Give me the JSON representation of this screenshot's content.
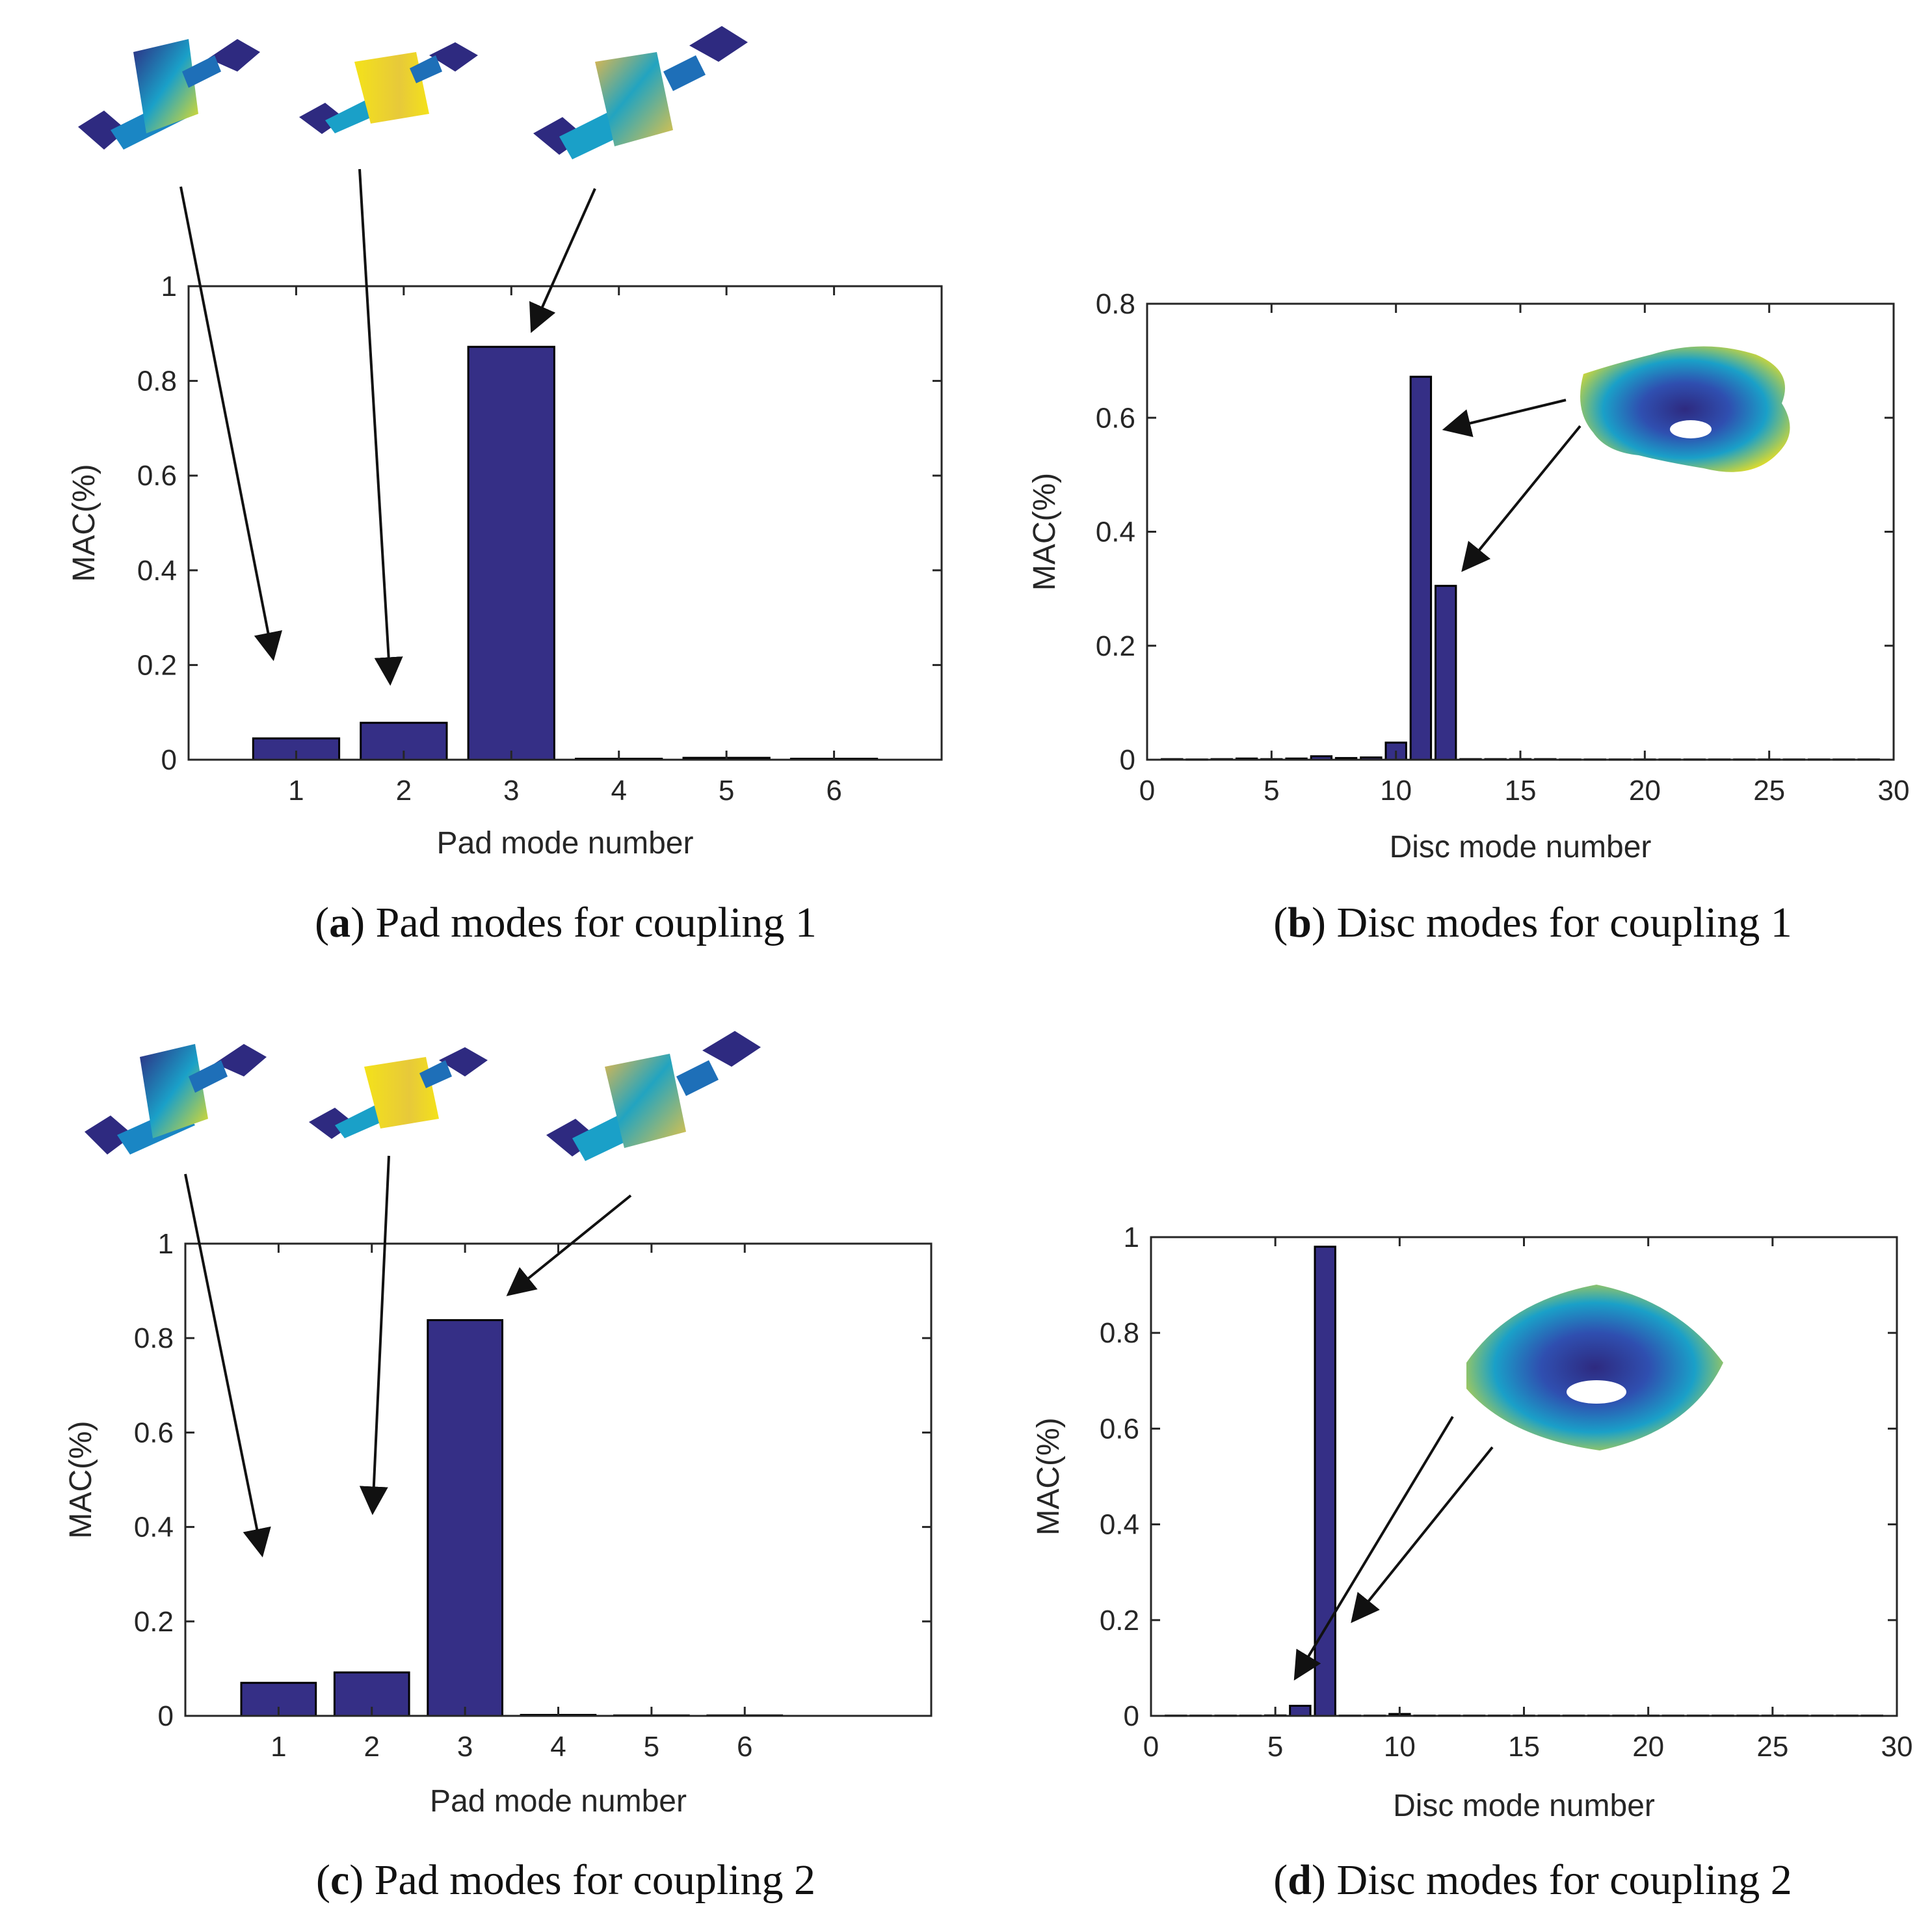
{
  "colors": {
    "bar": "#352f86",
    "axis": "#262626",
    "mode_low": "#2e2a80",
    "mode_mid": "#1aa0c8",
    "mode_high": "#f4e21a"
  },
  "chart_data": [
    {
      "type": "bar",
      "id": "a",
      "caption_letter": "a",
      "caption_text": "Pad modes for coupling 1",
      "xlabel": "Pad mode number",
      "ylabel": "MAC(%)",
      "categories": [
        "1",
        "2",
        "3",
        "4",
        "5",
        "6"
      ],
      "x": [
        1,
        2,
        3,
        4,
        5,
        6
      ],
      "values": [
        0.045,
        0.078,
        0.872,
        0.002,
        0.004,
        0.002
      ],
      "xlim": [
        0,
        7
      ],
      "ylim": [
        0,
        1
      ],
      "yticks": [
        "0",
        "0.2",
        "0.4",
        "0.6",
        "0.8",
        "1"
      ],
      "ytick_values": [
        0,
        0.2,
        0.4,
        0.6,
        0.8,
        1
      ],
      "grid": false,
      "annotations": [
        "Pad mode shape 1 (arrow to bar 1)",
        "Pad mode shape 2 (arrow to bar 2)",
        "Pad mode shape 3 (arrow to bar 3)"
      ]
    },
    {
      "type": "bar",
      "id": "b",
      "caption_letter": "b",
      "caption_text": "Disc modes for coupling 1",
      "xlabel": "Disc mode number",
      "ylabel": "MAC(%)",
      "x": [
        1,
        2,
        3,
        4,
        5,
        6,
        7,
        8,
        9,
        10,
        11,
        12,
        13,
        14,
        15,
        16,
        17,
        18,
        19,
        20,
        21,
        22,
        23,
        24,
        25,
        26,
        27,
        28,
        29
      ],
      "values": [
        0.001,
        0.0005,
        0.001,
        0.002,
        0.001,
        0.002,
        0.006,
        0.003,
        0.004,
        0.03,
        0.672,
        0.305,
        0.001,
        0.001,
        0.001,
        0.001,
        0.0005,
        0.0005,
        0.0005,
        0.0005,
        0.0005,
        0.0005,
        0.0005,
        0.0005,
        0.0005,
        0.0005,
        0.0005,
        0.0005,
        0.0005
      ],
      "xlim": [
        0,
        30
      ],
      "ylim": [
        0,
        0.8
      ],
      "xticks": [
        "0",
        "5",
        "10",
        "15",
        "20",
        "25",
        "30"
      ],
      "xtick_values": [
        0,
        5,
        10,
        15,
        20,
        25,
        30
      ],
      "yticks": [
        "0",
        "0.2",
        "0.4",
        "0.6",
        "0.8"
      ],
      "ytick_values": [
        0,
        0.2,
        0.4,
        0.6,
        0.8
      ],
      "grid": false,
      "annotations": [
        "Disc mode shape (arrows to bars 11 and 12)"
      ]
    },
    {
      "type": "bar",
      "id": "c",
      "caption_letter": "c",
      "caption_text": "Pad modes for coupling 2",
      "xlabel": "Pad mode number",
      "ylabel": "MAC(%)",
      "categories": [
        "1",
        "2",
        "3",
        "4",
        "5",
        "6"
      ],
      "x": [
        1,
        2,
        3,
        4,
        5,
        6
      ],
      "values": [
        0.07,
        0.092,
        0.838,
        0.002,
        0.001,
        0.001
      ],
      "xlim": [
        0,
        8
      ],
      "ylim": [
        0,
        1
      ],
      "yticks": [
        "0",
        "0.2",
        "0.4",
        "0.6",
        "0.8",
        "1"
      ],
      "ytick_values": [
        0,
        0.2,
        0.4,
        0.6,
        0.8,
        1
      ],
      "grid": false,
      "annotations": [
        "Pad mode shape 1 (arrow to bar 1)",
        "Pad mode shape 2 (arrow to bar 2)",
        "Pad mode shape 3 (arrow to bar 3)"
      ]
    },
    {
      "type": "bar",
      "id": "d",
      "caption_letter": "d",
      "caption_text": "Disc modes for coupling 2",
      "xlabel": "Disc mode number",
      "ylabel": "MAC(%)",
      "x": [
        1,
        2,
        3,
        4,
        5,
        6,
        7,
        8,
        9,
        10,
        11,
        12,
        13,
        14,
        15,
        16,
        17,
        18,
        19,
        20,
        21,
        22,
        23,
        24,
        25,
        26,
        27,
        28,
        29
      ],
      "values": [
        0.0005,
        0.0005,
        0.0005,
        0.0005,
        0.001,
        0.021,
        0.98,
        0.0005,
        0.0005,
        0.004,
        0.0005,
        0.0005,
        0.0005,
        0.0005,
        0.0005,
        0.0005,
        0.0005,
        0.0005,
        0.0005,
        0.0005,
        0.0005,
        0.0005,
        0.0005,
        0.0005,
        0.0005,
        0.0005,
        0.0005,
        0.0005,
        0.0005
      ],
      "xlim": [
        0,
        30
      ],
      "ylim": [
        0,
        1
      ],
      "xticks": [
        "0",
        "5",
        "10",
        "15",
        "20",
        "25",
        "30"
      ],
      "xtick_values": [
        0,
        5,
        10,
        15,
        20,
        25,
        30
      ],
      "yticks": [
        "0",
        "0.2",
        "0.4",
        "0.6",
        "0.8",
        "1"
      ],
      "ytick_values": [
        0,
        0.2,
        0.4,
        0.6,
        0.8,
        1
      ],
      "grid": false,
      "annotations": [
        "Disc mode shape (arrows to bars 6 and 7)"
      ]
    }
  ]
}
